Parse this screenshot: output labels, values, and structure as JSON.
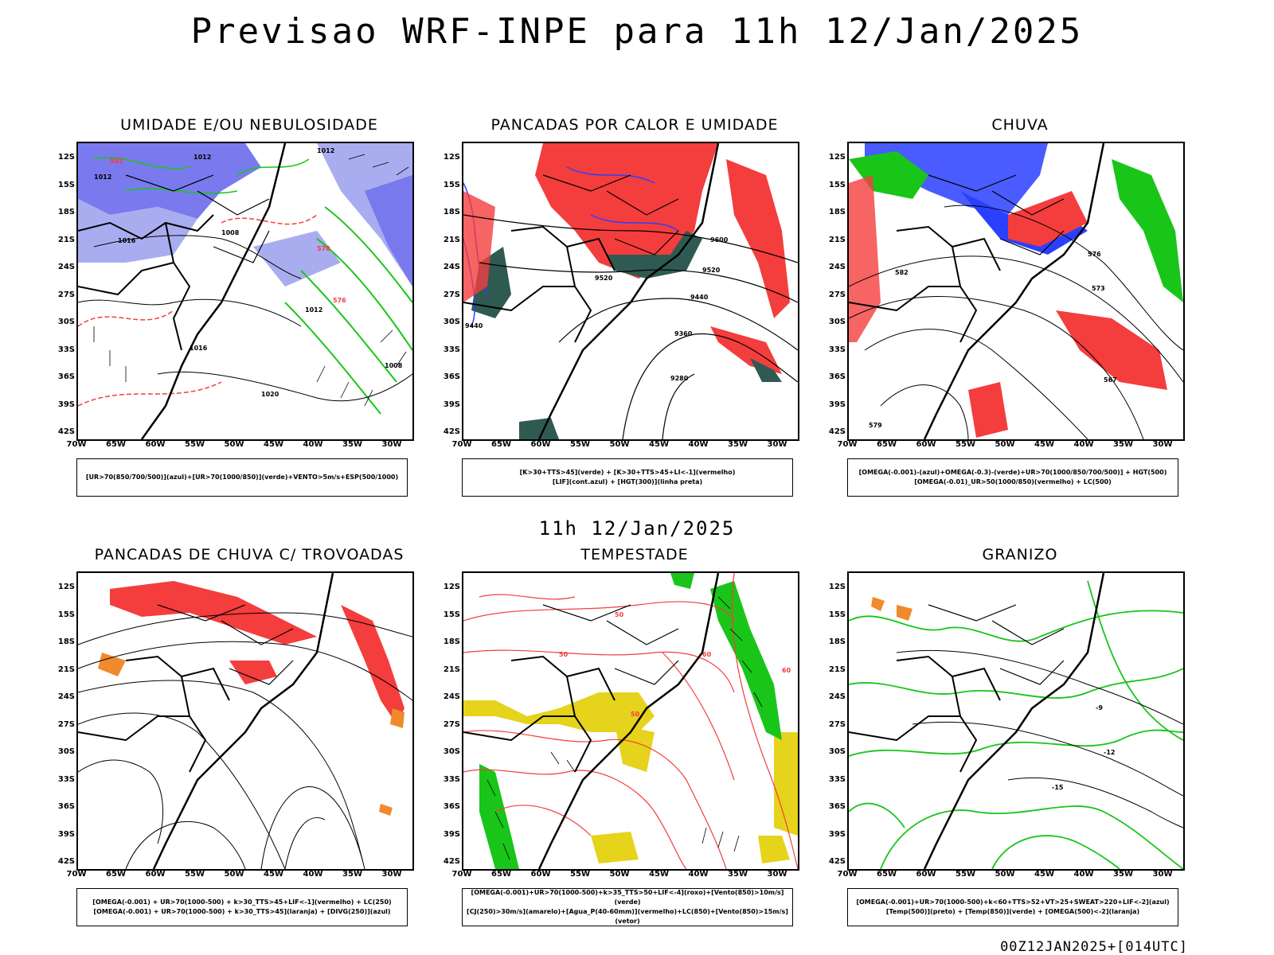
{
  "header": {
    "title": "Previsao WRF-INPE  para 11h 12/Jan/2025"
  },
  "mid_date": "11h 12/Jan/2025",
  "footer": {
    "stamp": "00Z12JAN2025+[014UTC]"
  },
  "axes": {
    "lat": [
      "12S",
      "15S",
      "18S",
      "21S",
      "24S",
      "27S",
      "30S",
      "33S",
      "36S",
      "39S",
      "42S"
    ],
    "lon": [
      "70W",
      "65W",
      "60W",
      "55W",
      "50W",
      "45W",
      "40W",
      "35W",
      "30W"
    ]
  },
  "panels": [
    {
      "title": "UMIDADE E/OU NEBULOSIDADE",
      "legend": [
        "[UR>70(850/700/500)](azul)+[UR>70(1000/850)](verde)+VENTO>5m/s+ESP(500/1000)"
      ],
      "contour_labels": [
        "1012",
        "1012",
        "1012",
        "1008",
        "1016",
        "1020",
        "1012",
        "1016",
        "1008",
        "570",
        "576",
        "582"
      ]
    },
    {
      "title": "PANCADAS POR CALOR E UMIDADE",
      "legend": [
        "[K>30+TTS>45](verde) + [K>30+TTS>45+LI<-1](vermelho)",
        "[LIF](cont.azul) + [HGT(300)](linha preta)"
      ],
      "contour_labels": [
        "9600",
        "9520",
        "9440",
        "9360",
        "9280",
        "9520",
        "9440"
      ]
    },
    {
      "title": "CHUVA",
      "legend": [
        "[OMEGA(-0.001)-(azul)+OMEGA(-0.3)-(verde)+UR>70(1000/850/700/500)] + HGT(500)",
        "[OMEGA(-0.01)_UR>50(1000/850)(vermelho) + LC(500)"
      ],
      "contour_labels": [
        "582",
        "576",
        "573",
        "567",
        "579"
      ]
    },
    {
      "title": "PANCADAS DE CHUVA C/ TROVOADAS",
      "legend": [
        "[OMEGA(-0.001) + UR>70(1000-500) + k>30_TTS>45+LIF<-1](vermelho) + LC(250)",
        "[OMEGA(-0.001) + UR>70(1000-500) + k>30_TTS>45](laranja) + [DIVG(250)](azul)"
      ],
      "contour_labels": []
    },
    {
      "title": "TEMPESTADE",
      "legend": [
        "[OMEGA(-0.001)+UR>70(1000-500)+k>35_TTS>50+LIF<-4](roxo)+[Vento(850)>10m/s](verde)",
        "[CJ(250)>30m/s](amarelo)+[Agua_P(40-60mm)](vermelho)+LC(850)+[Vento(850)>15m/s](vetor)"
      ],
      "contour_labels": [
        "50",
        "50",
        "50",
        "60",
        "60"
      ]
    },
    {
      "title": "GRANIZO",
      "legend": [
        "[OMEGA(-0.001)+UR>70(1000-500)+k<60+TTS>52+VT>25+SWEAT>220+LIF<-2](azul)",
        "[Temp(500)](preto) + [Temp(850)](verde) + [OMEGA(500)<-2](laranja)"
      ],
      "contour_labels": [
        "-9",
        "-12",
        "-15"
      ]
    }
  ],
  "colors": {
    "blue": "#2a40ff",
    "lightblue": "#a9adf0",
    "periwinkle": "#6c6cec",
    "green": "#19c519",
    "red": "#f43d3d",
    "darkgreen": "#2f5a52",
    "yellow": "#e5d31c",
    "orange": "#f08a2c"
  }
}
